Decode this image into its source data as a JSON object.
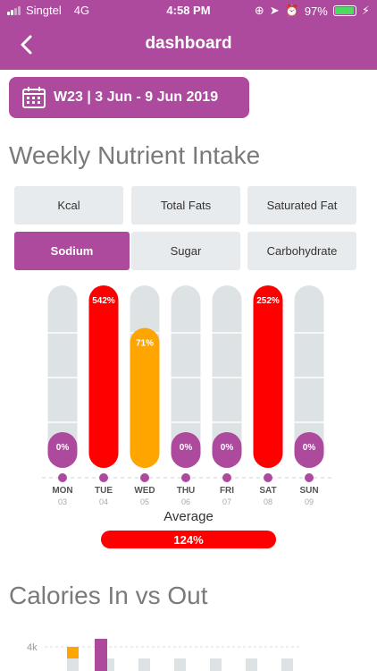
{
  "status_bar": {
    "carrier": "Singtel",
    "network": "4G",
    "time": "4:58 PM",
    "battery": "97%",
    "battery_fill": 0.97
  },
  "header": {
    "title": "dashboard",
    "back_icon": "chevron-left-icon"
  },
  "week_selector": {
    "label": "W23 | 3 Jun - 9 Jun 2019",
    "icon": "calendar-icon"
  },
  "section1": {
    "title": "Weekly Nutrient Intake"
  },
  "tabs": [
    {
      "label": "Kcal",
      "active": false
    },
    {
      "label": "Total Fats",
      "active": false
    },
    {
      "label": "Saturated Fat",
      "active": false
    },
    {
      "label": "Sodium",
      "active": true
    },
    {
      "label": "Sugar",
      "active": false
    },
    {
      "label": "Carbohydrate",
      "active": false
    }
  ],
  "chart_data": {
    "type": "bar",
    "days": [
      {
        "day": "MON",
        "date": "03",
        "value": 0,
        "label": "0%"
      },
      {
        "day": "TUE",
        "date": "04",
        "value": 542,
        "label": "542%"
      },
      {
        "day": "WED",
        "date": "05",
        "value": 71,
        "label": "71%"
      },
      {
        "day": "THU",
        "date": "06",
        "value": 0,
        "label": "0%"
      },
      {
        "day": "FRI",
        "date": "07",
        "value": 0,
        "label": "0%"
      },
      {
        "day": "SAT",
        "date": "08",
        "value": 252,
        "label": "252%"
      },
      {
        "day": "SUN",
        "date": "09",
        "value": 0,
        "label": "0%"
      }
    ],
    "colors": {
      "over": "#ff0000",
      "mid": "#ffa500",
      "zero": "#ad4a9e",
      "track": "#dde2e5"
    }
  },
  "average": {
    "label": "Average",
    "value": "124%"
  },
  "section2": {
    "title": "Calories In vs Out",
    "y_tick": "4k"
  }
}
